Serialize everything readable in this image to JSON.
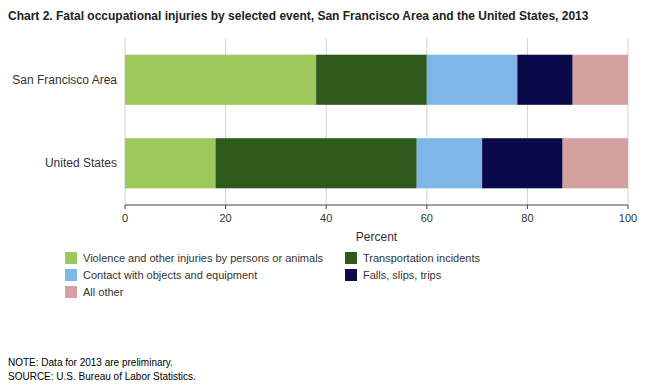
{
  "chart_data": {
    "type": "bar",
    "orientation": "horizontal",
    "stacked": true,
    "title": "Chart 2.  Fatal occupational injuries by selected event, San Francisco Area and the United States, 2013",
    "categories": [
      "United States",
      "San Francisco Area"
    ],
    "series": [
      {
        "name": "Violence and other injuries by persons or animals",
        "color": "#9dc85c",
        "values": [
          18.0,
          38.0
        ]
      },
      {
        "name": "Transportation incidents",
        "color": "#2d5a1b",
        "values": [
          40.0,
          22.0
        ]
      },
      {
        "name": "Contact with objects and equipment",
        "color": "#7eb6e8",
        "values": [
          13.0,
          18.0
        ]
      },
      {
        "name": "Falls, slips, trips",
        "color": "#0a0a4a",
        "values": [
          16.0,
          11.0
        ]
      },
      {
        "name": "All other",
        "color": "#d4a0a0",
        "values": [
          13.0,
          11.0
        ]
      }
    ],
    "xlabel": "Percent",
    "xlim": [
      0,
      100
    ],
    "xticks": [
      0,
      20,
      40,
      60,
      80,
      100
    ],
    "grid": true,
    "legend": "bottom",
    "annotations": [
      "NOTE: Data for 2013 are preliminary.",
      "SOURCE: U.S. Bureau of Labor Statistics."
    ]
  }
}
